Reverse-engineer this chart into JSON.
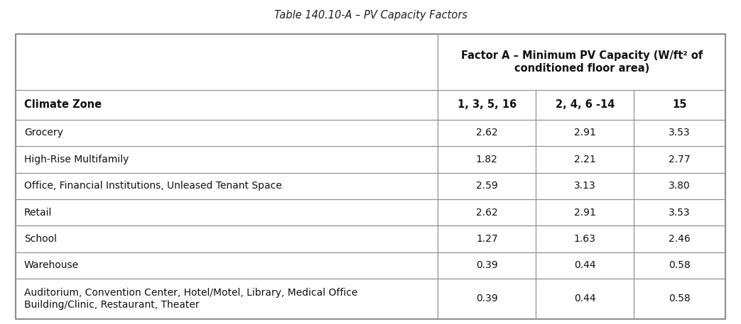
{
  "title": "Table 140.10-A – PV Capacity Factors",
  "header_col": "Factor A – Minimum PV Capacity (W/ft² of\nconditioned floor area)",
  "subheaders": [
    "1, 3, 5, 16",
    "2, 4, 6 -14",
    "15"
  ],
  "col0_header": "Climate Zone",
  "rows": [
    {
      "label": "Grocery",
      "values": [
        "2.62",
        "2.91",
        "3.53"
      ]
    },
    {
      "label": "High-Rise Multifamily",
      "values": [
        "1.82",
        "2.21",
        "2.77"
      ]
    },
    {
      "label": "Office, Financial Institutions, Unleased Tenant Space",
      "values": [
        "2.59",
        "3.13",
        "3.80"
      ]
    },
    {
      "label": "Retail",
      "values": [
        "2.62",
        "2.91",
        "3.53"
      ]
    },
    {
      "label": "School",
      "values": [
        "1.27",
        "1.63",
        "2.46"
      ]
    },
    {
      "label": "Warehouse",
      "values": [
        "0.39",
        "0.44",
        "0.58"
      ]
    },
    {
      "label": "Auditorium, Convention Center, Hotel/Motel, Library, Medical Office\nBuilding/Clinic, Restaurant, Theater",
      "values": [
        "0.39",
        "0.44",
        "0.58"
      ]
    }
  ],
  "bg_color": "#ffffff",
  "border_color": "#909090",
  "title_font_size": 10.5,
  "header_font_size": 10.5,
  "cell_font_size": 10.0,
  "fig_width": 10.43,
  "fig_height": 4.57,
  "dpi": 100
}
